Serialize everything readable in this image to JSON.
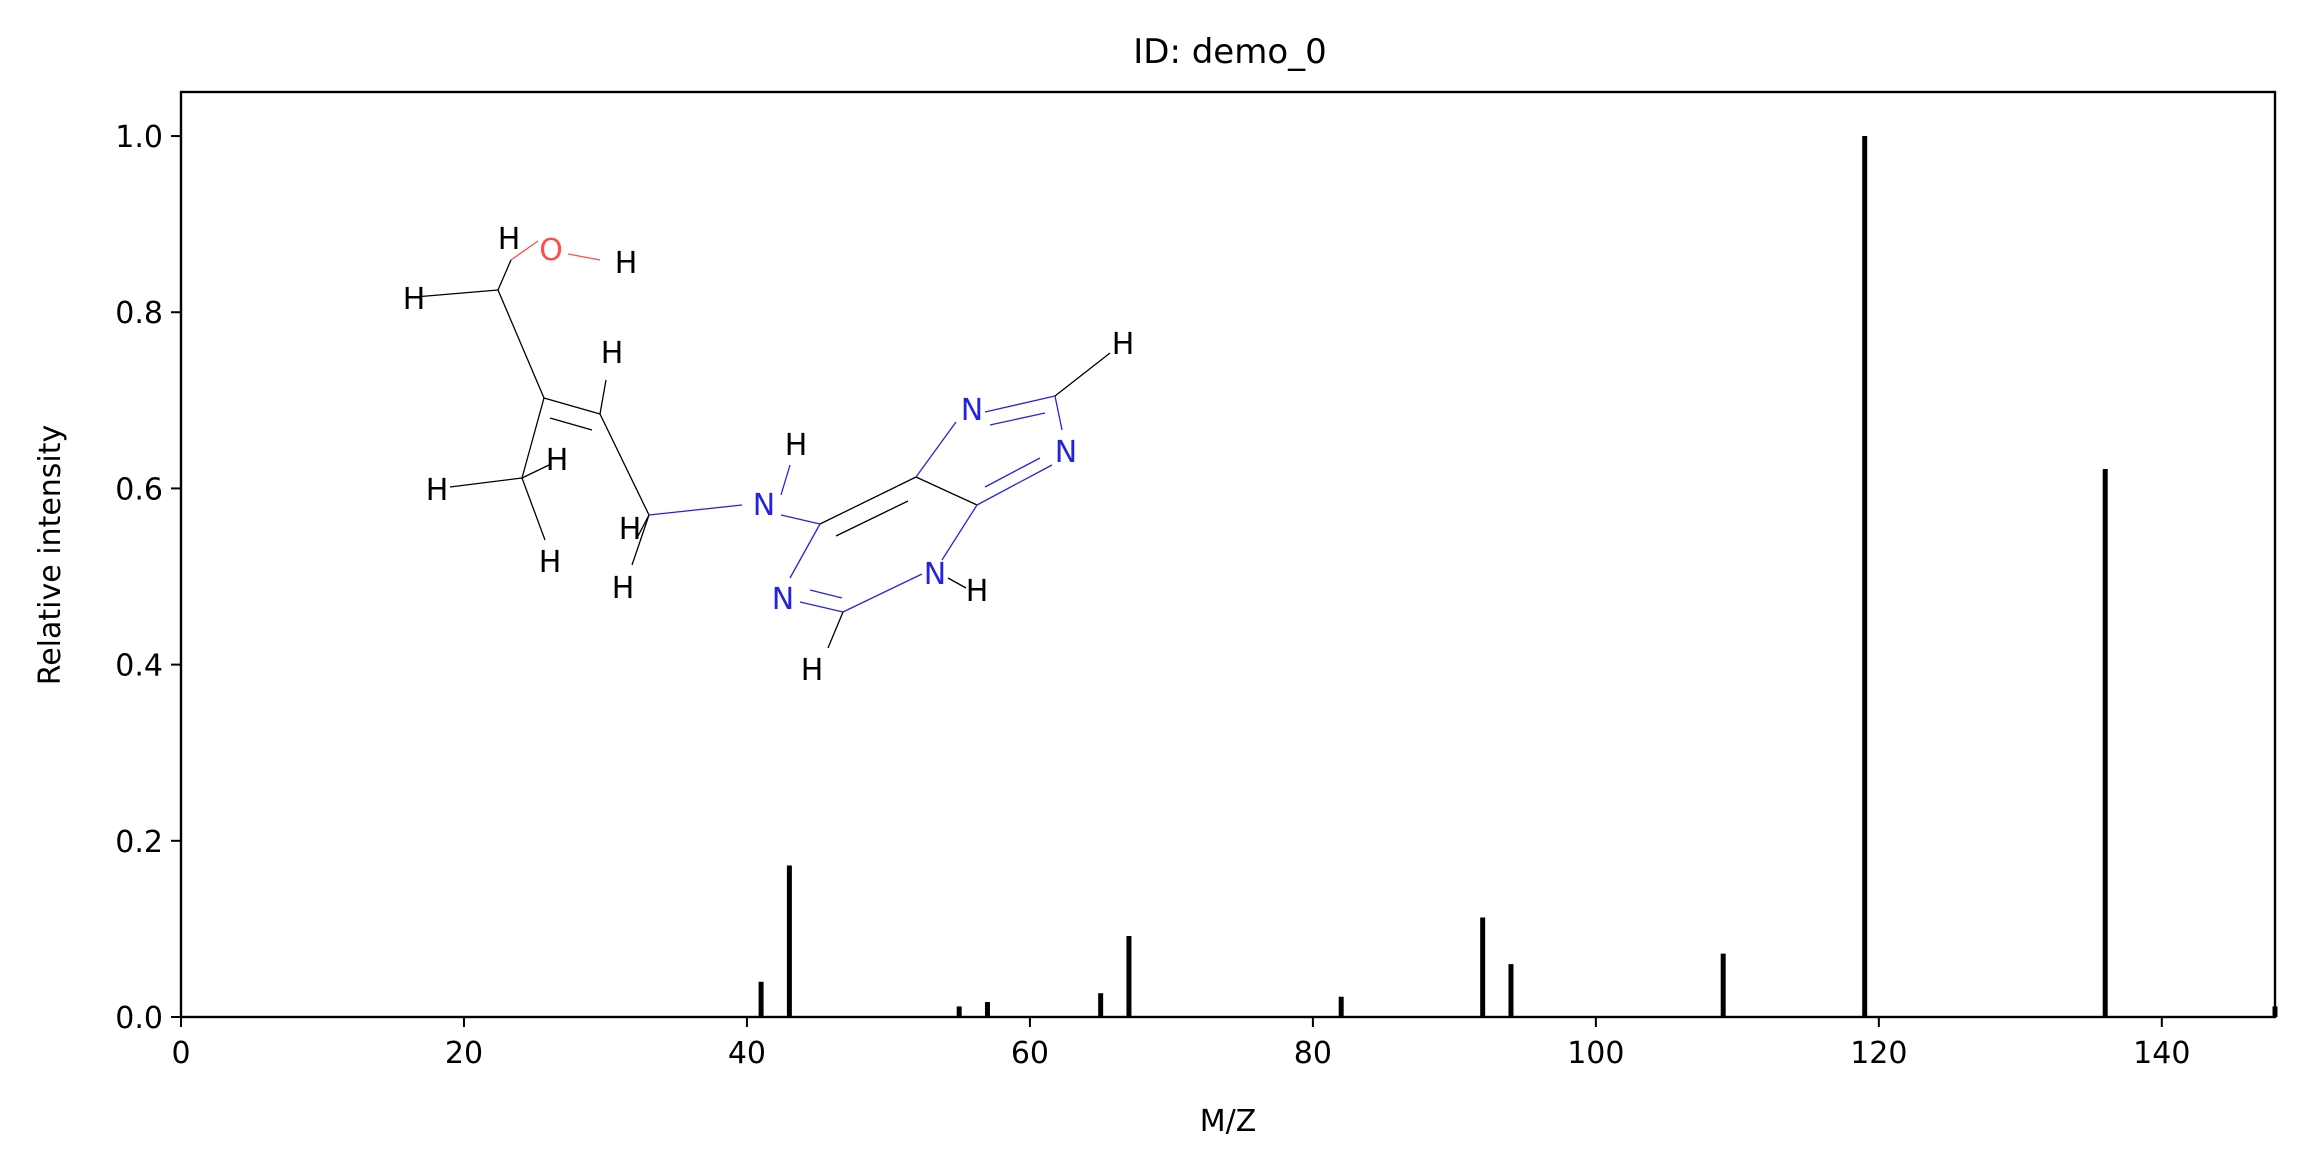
{
  "chart_data": {
    "type": "bar",
    "title": "ID: demo_0",
    "xlabel": "M/Z",
    "ylabel": "Relative intensity",
    "xlim": [
      0,
      148
    ],
    "ylim": [
      0,
      1.05
    ],
    "xticks": [
      "0",
      "20",
      "40",
      "60",
      "80",
      "100",
      "120",
      "140"
    ],
    "yticks": [
      "0.0",
      "0.2",
      "0.4",
      "0.6",
      "0.8",
      "1.0"
    ],
    "grid": false,
    "bar_color": "#000000",
    "x": [
      41,
      43,
      55,
      57,
      65,
      67,
      82,
      92,
      94,
      109,
      119,
      136,
      148
    ],
    "values": [
      0.04,
      0.172,
      0.012,
      0.017,
      0.027,
      0.092,
      0.023,
      0.113,
      0.06,
      0.072,
      1.0,
      0.622,
      0.012
    ]
  },
  "molecule": {
    "carbon_color": "#000000",
    "oxygen_color": "#ff4d4d",
    "nitrogen_color": "#2424e0",
    "atoms": [
      {
        "id": "O1",
        "label": "O"
      },
      {
        "id": "N1",
        "label": "N"
      },
      {
        "id": "N2",
        "label": "N"
      },
      {
        "id": "N3",
        "label": "N"
      },
      {
        "id": "N4",
        "label": "N"
      },
      {
        "id": "N5",
        "label": "N"
      },
      {
        "id": "H1",
        "label": "H"
      },
      {
        "id": "H2",
        "label": "H"
      },
      {
        "id": "H3",
        "label": "H"
      },
      {
        "id": "H4",
        "label": "H"
      },
      {
        "id": "H5",
        "label": "H"
      },
      {
        "id": "H6",
        "label": "H"
      },
      {
        "id": "H7",
        "label": "H"
      },
      {
        "id": "H8",
        "label": "H"
      },
      {
        "id": "H9",
        "label": "H"
      },
      {
        "id": "H10",
        "label": "H"
      },
      {
        "id": "H11",
        "label": "H"
      },
      {
        "id": "H12",
        "label": "H"
      },
      {
        "id": "H13",
        "label": "H"
      }
    ]
  }
}
